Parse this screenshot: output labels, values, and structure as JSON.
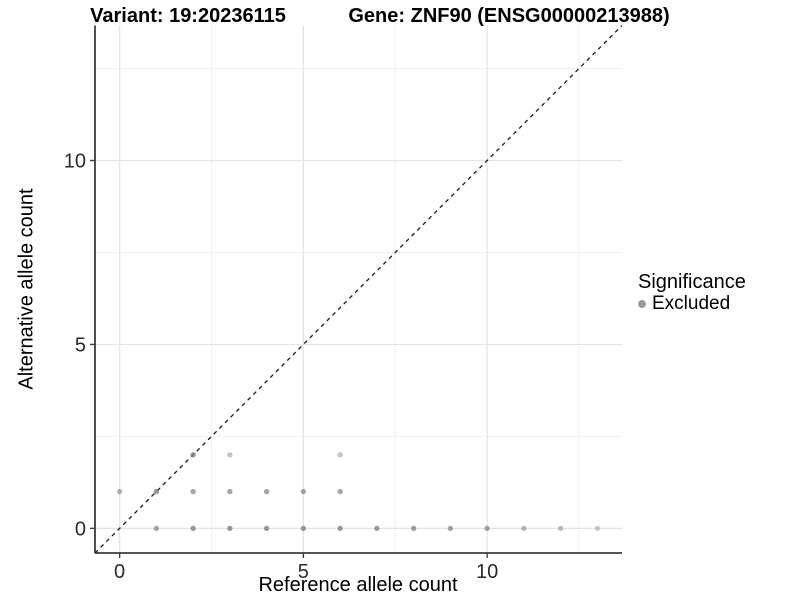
{
  "chart_data": {
    "type": "scatter",
    "title_left": "Variant: 19:20236115",
    "title_right": "Gene: ZNF90 (ENSG00000213988)",
    "xlabel": "Reference allele count",
    "ylabel": "Alternative allele count",
    "xlim": [
      -0.67,
      13.67
    ],
    "ylim": [
      -0.67,
      13.67
    ],
    "x_ticks": [
      0,
      5,
      10
    ],
    "y_ticks": [
      0,
      5,
      10
    ],
    "x_minor_gridlines": [
      2.5,
      7.5,
      12.5
    ],
    "y_minor_gridlines": [
      2.5,
      7.5,
      12.5
    ],
    "grid": "major+minor",
    "identity_line": {
      "type": "identity",
      "equation": "y = x",
      "style": "dashed",
      "color": "#1a1a1a"
    },
    "legend": {
      "title": "Significance",
      "position": "right",
      "entries": [
        {
          "label": "Excluded",
          "color": "#9a9a9a"
        }
      ]
    },
    "series": [
      {
        "name": "Excluded",
        "color": "#808080",
        "marker": "circle",
        "points": [
          {
            "x": 1,
            "y": 0,
            "alpha": 0.7
          },
          {
            "x": 2,
            "y": 0,
            "alpha": 0.8
          },
          {
            "x": 3,
            "y": 0,
            "alpha": 0.8
          },
          {
            "x": 4,
            "y": 0,
            "alpha": 0.8
          },
          {
            "x": 5,
            "y": 0,
            "alpha": 0.8
          },
          {
            "x": 6,
            "y": 0,
            "alpha": 0.8
          },
          {
            "x": 7,
            "y": 0,
            "alpha": 0.75
          },
          {
            "x": 8,
            "y": 0,
            "alpha": 0.75
          },
          {
            "x": 9,
            "y": 0,
            "alpha": 0.7
          },
          {
            "x": 10,
            "y": 0,
            "alpha": 0.7
          },
          {
            "x": 11,
            "y": 0,
            "alpha": 0.55
          },
          {
            "x": 12,
            "y": 0,
            "alpha": 0.5
          },
          {
            "x": 13,
            "y": 0,
            "alpha": 0.4
          },
          {
            "x": 0,
            "y": 1,
            "alpha": 0.6
          },
          {
            "x": 1,
            "y": 1,
            "alpha": 0.8
          },
          {
            "x": 2,
            "y": 1,
            "alpha": 0.7
          },
          {
            "x": 3,
            "y": 1,
            "alpha": 0.7
          },
          {
            "x": 4,
            "y": 1,
            "alpha": 0.7
          },
          {
            "x": 5,
            "y": 1,
            "alpha": 0.7
          },
          {
            "x": 6,
            "y": 1,
            "alpha": 0.7
          },
          {
            "x": 2,
            "y": 2,
            "alpha": 0.8
          },
          {
            "x": 3,
            "y": 2,
            "alpha": 0.45
          },
          {
            "x": 6,
            "y": 2,
            "alpha": 0.45
          }
        ]
      }
    ],
    "style_colors": {
      "major_grid": "#e3e3e3",
      "minor_grid": "#f0f0f0",
      "axis_line": "#3c3c3c",
      "tick_text": "#2b2b2b"
    }
  }
}
